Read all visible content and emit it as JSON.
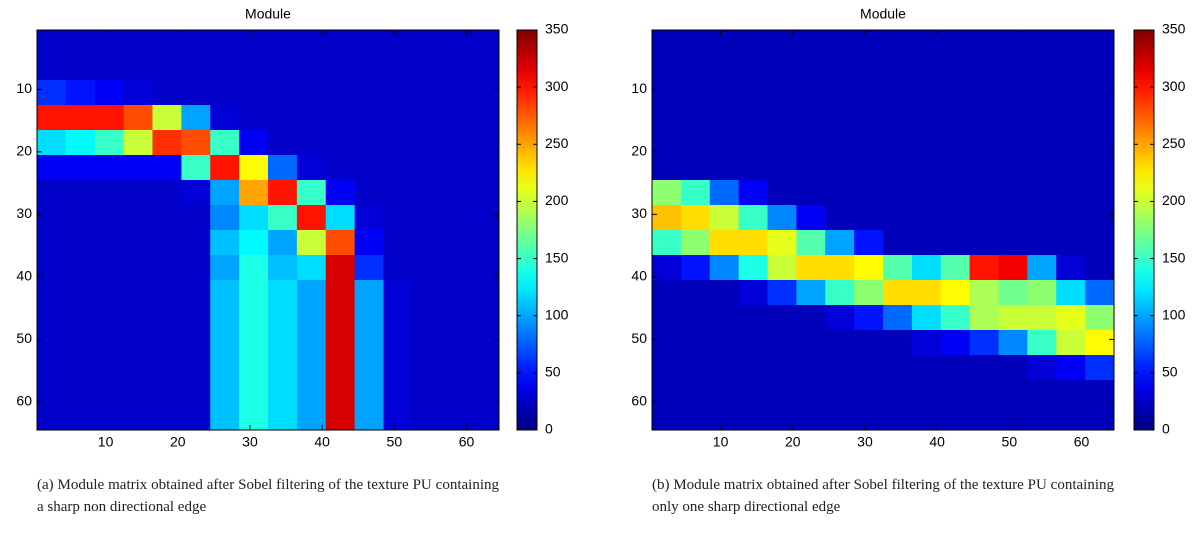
{
  "chart_data": [
    {
      "type": "heatmap",
      "title": "Module",
      "colormap": "jet",
      "y_direction": "reverse",
      "xlim": [
        0.5,
        64.5
      ],
      "ylim": [
        0.5,
        64.5
      ],
      "xticks": [
        10,
        20,
        30,
        40,
        50,
        60
      ],
      "yticks": [
        10,
        20,
        30,
        40,
        50,
        60
      ],
      "colorbar": {
        "lim": [
          0,
          350
        ],
        "ticks": [
          0,
          50,
          100,
          150,
          200,
          250,
          300,
          350
        ]
      },
      "z": [
        [
          25,
          25,
          25,
          25,
          25,
          25,
          25,
          25,
          25,
          25,
          25,
          25,
          25,
          25,
          25,
          25
        ],
        [
          25,
          25,
          25,
          25,
          25,
          25,
          25,
          25,
          25,
          25,
          25,
          25,
          25,
          25,
          25,
          25
        ],
        [
          60,
          50,
          40,
          30,
          25,
          25,
          25,
          25,
          25,
          25,
          25,
          25,
          25,
          25,
          25,
          25
        ],
        [
          300,
          300,
          300,
          280,
          200,
          100,
          30,
          25,
          25,
          25,
          25,
          25,
          25,
          25,
          25,
          25
        ],
        [
          120,
          130,
          150,
          200,
          290,
          280,
          150,
          40,
          25,
          25,
          25,
          25,
          25,
          25,
          25,
          25
        ],
        [
          40,
          40,
          40,
          40,
          40,
          150,
          300,
          220,
          80,
          30,
          25,
          25,
          25,
          25,
          25,
          25
        ],
        [
          25,
          25,
          25,
          25,
          25,
          30,
          100,
          250,
          300,
          150,
          40,
          25,
          25,
          25,
          25,
          25
        ],
        [
          25,
          25,
          25,
          25,
          25,
          25,
          90,
          120,
          150,
          300,
          120,
          30,
          25,
          25,
          25,
          25
        ],
        [
          25,
          25,
          25,
          25,
          25,
          25,
          110,
          130,
          100,
          200,
          280,
          40,
          25,
          25,
          25,
          25
        ],
        [
          25,
          25,
          25,
          25,
          25,
          25,
          100,
          140,
          110,
          120,
          320,
          60,
          25,
          25,
          25,
          25
        ],
        [
          25,
          25,
          25,
          25,
          25,
          25,
          110,
          140,
          120,
          100,
          320,
          100,
          30,
          25,
          25,
          25
        ],
        [
          25,
          25,
          25,
          25,
          25,
          25,
          110,
          140,
          120,
          100,
          320,
          100,
          30,
          25,
          25,
          25
        ],
        [
          25,
          25,
          25,
          25,
          25,
          25,
          110,
          140,
          120,
          100,
          320,
          100,
          30,
          25,
          25,
          25
        ],
        [
          25,
          25,
          25,
          25,
          25,
          25,
          110,
          140,
          120,
          100,
          320,
          100,
          30,
          25,
          25,
          25
        ],
        [
          25,
          25,
          25,
          25,
          25,
          25,
          110,
          140,
          120,
          100,
          320,
          100,
          30,
          25,
          25,
          25
        ],
        [
          25,
          25,
          25,
          25,
          25,
          25,
          110,
          140,
          120,
          100,
          320,
          100,
          30,
          25,
          25,
          25
        ]
      ],
      "caption": "(a) Module matrix obtained after Sobel filtering of the texture PU containing a sharp non directional edge"
    },
    {
      "type": "heatmap",
      "title": "Module",
      "colormap": "jet",
      "y_direction": "reverse",
      "xlim": [
        0.5,
        64.5
      ],
      "ylim": [
        0.5,
        64.5
      ],
      "xticks": [
        10,
        20,
        30,
        40,
        50,
        60
      ],
      "yticks": [
        10,
        20,
        30,
        40,
        50,
        60
      ],
      "colorbar": {
        "lim": [
          0,
          350
        ],
        "ticks": [
          0,
          50,
          100,
          150,
          200,
          250,
          300,
          350
        ]
      },
      "z": [
        [
          20,
          20,
          20,
          20,
          20,
          20,
          20,
          20,
          20,
          20,
          20,
          20,
          20,
          20,
          20,
          20
        ],
        [
          20,
          20,
          20,
          20,
          20,
          20,
          20,
          20,
          20,
          20,
          20,
          20,
          20,
          20,
          20,
          20
        ],
        [
          20,
          20,
          20,
          20,
          20,
          20,
          20,
          20,
          20,
          20,
          20,
          20,
          20,
          20,
          20,
          20
        ],
        [
          20,
          20,
          20,
          20,
          20,
          20,
          20,
          20,
          20,
          20,
          20,
          20,
          20,
          20,
          20,
          20
        ],
        [
          20,
          20,
          20,
          20,
          20,
          20,
          20,
          20,
          20,
          20,
          20,
          20,
          20,
          20,
          20,
          20
        ],
        [
          20,
          20,
          20,
          20,
          20,
          20,
          20,
          20,
          20,
          20,
          20,
          20,
          20,
          20,
          20,
          20
        ],
        [
          180,
          150,
          80,
          40,
          20,
          20,
          20,
          20,
          20,
          20,
          20,
          20,
          20,
          20,
          20,
          20
        ],
        [
          240,
          230,
          200,
          150,
          90,
          40,
          20,
          20,
          20,
          20,
          20,
          20,
          20,
          20,
          20,
          20
        ],
        [
          150,
          180,
          230,
          230,
          210,
          160,
          100,
          50,
          20,
          20,
          20,
          20,
          20,
          20,
          20,
          20
        ],
        [
          30,
          50,
          90,
          140,
          200,
          230,
          230,
          220,
          160,
          120,
          160,
          300,
          310,
          100,
          30,
          20
        ],
        [
          20,
          20,
          20,
          30,
          60,
          100,
          150,
          180,
          230,
          230,
          220,
          190,
          170,
          180,
          120,
          80
        ],
        [
          20,
          20,
          20,
          20,
          20,
          20,
          30,
          50,
          80,
          120,
          150,
          190,
          200,
          200,
          210,
          180
        ],
        [
          20,
          20,
          20,
          20,
          20,
          20,
          20,
          20,
          20,
          30,
          40,
          60,
          90,
          150,
          200,
          220
        ],
        [
          20,
          20,
          20,
          20,
          20,
          20,
          20,
          20,
          20,
          20,
          20,
          20,
          20,
          30,
          40,
          60
        ],
        [
          20,
          20,
          20,
          20,
          20,
          20,
          20,
          20,
          20,
          20,
          20,
          20,
          20,
          20,
          20,
          20
        ],
        [
          20,
          20,
          20,
          20,
          20,
          20,
          20,
          20,
          20,
          20,
          20,
          20,
          20,
          20,
          20,
          20
        ]
      ],
      "caption": "(b) Module matrix obtained after Sobel filtering of the texture PU containing only one sharp directional edge"
    }
  ]
}
